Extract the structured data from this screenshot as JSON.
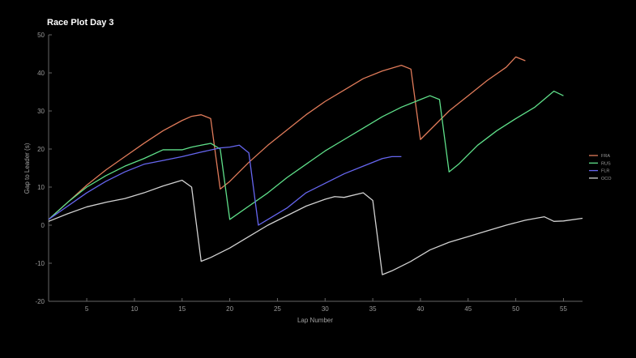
{
  "chart_data": {
    "type": "line",
    "title": "Race Plot Day 3",
    "xlabel": "Lap Number",
    "ylabel": "Gap to Leader (s)",
    "xlim": [
      1,
      57
    ],
    "ylim": [
      -20,
      50
    ],
    "xticks": [
      5,
      10,
      15,
      20,
      25,
      30,
      35,
      40,
      45,
      50,
      55
    ],
    "yticks": [
      -20,
      -10,
      0,
      10,
      20,
      30,
      40,
      50
    ],
    "grid": false,
    "legend_position": "right",
    "series": [
      {
        "name": "FRA",
        "color": "#e07b5a",
        "points": [
          [
            1,
            1.5
          ],
          [
            3,
            6
          ],
          [
            5,
            10.5
          ],
          [
            7,
            14.5
          ],
          [
            9,
            18
          ],
          [
            11,
            21.5
          ],
          [
            13,
            24.8
          ],
          [
            15,
            27.5
          ],
          [
            16,
            28.6
          ],
          [
            17,
            29
          ],
          [
            18,
            28
          ],
          [
            19,
            9.5
          ],
          [
            20,
            11.5
          ],
          [
            22,
            16.5
          ],
          [
            24,
            21
          ],
          [
            26,
            25
          ],
          [
            28,
            29
          ],
          [
            30,
            32.5
          ],
          [
            32,
            35.5
          ],
          [
            34,
            38.5
          ],
          [
            36,
            40.5
          ],
          [
            38,
            42
          ],
          [
            39,
            41
          ],
          [
            40,
            22.5
          ],
          [
            41,
            25
          ],
          [
            43,
            30
          ],
          [
            45,
            34
          ],
          [
            47,
            38
          ],
          [
            49,
            41.5
          ],
          [
            50,
            44.2
          ],
          [
            51,
            43.2
          ]
        ]
      },
      {
        "name": "RUS",
        "color": "#5fe08a",
        "points": [
          [
            1,
            1.5
          ],
          [
            3,
            6
          ],
          [
            5,
            10
          ],
          [
            7,
            13
          ],
          [
            9,
            15.5
          ],
          [
            11,
            17.5
          ],
          [
            13,
            19.8
          ],
          [
            15,
            19.8
          ],
          [
            16,
            20.5
          ],
          [
            17,
            21
          ],
          [
            18,
            21.5
          ],
          [
            19,
            20
          ],
          [
            20,
            1.5
          ],
          [
            22,
            5
          ],
          [
            24,
            8.5
          ],
          [
            26,
            12.5
          ],
          [
            28,
            16
          ],
          [
            30,
            19.5
          ],
          [
            32,
            22.5
          ],
          [
            34,
            25.5
          ],
          [
            36,
            28.5
          ],
          [
            38,
            31
          ],
          [
            40,
            33
          ],
          [
            41,
            34
          ],
          [
            42,
            33
          ],
          [
            43,
            14
          ],
          [
            44,
            16
          ],
          [
            46,
            21
          ],
          [
            48,
            24.8
          ],
          [
            50,
            28
          ],
          [
            52,
            31
          ],
          [
            54,
            35.2
          ],
          [
            55,
            34
          ]
        ]
      },
      {
        "name": "FLR",
        "color": "#6666f0",
        "points": [
          [
            1,
            1.5
          ],
          [
            3,
            5
          ],
          [
            5,
            8.5
          ],
          [
            7,
            11.5
          ],
          [
            9,
            14
          ],
          [
            11,
            16
          ],
          [
            13,
            17
          ],
          [
            15,
            18
          ],
          [
            17,
            19.2
          ],
          [
            19,
            20.3
          ],
          [
            20,
            20.5
          ],
          [
            21,
            21
          ],
          [
            22,
            19
          ],
          [
            23,
            0
          ],
          [
            24,
            1.5
          ],
          [
            26,
            4.5
          ],
          [
            28,
            8.5
          ],
          [
            30,
            11
          ],
          [
            32,
            13.5
          ],
          [
            34,
            15.5
          ],
          [
            36,
            17.5
          ],
          [
            37,
            18
          ],
          [
            38,
            18
          ]
        ]
      },
      {
        "name": "OCO",
        "color": "#d2d2d2",
        "points": [
          [
            1,
            1
          ],
          [
            3,
            3
          ],
          [
            5,
            4.8
          ],
          [
            7,
            6
          ],
          [
            9,
            7
          ],
          [
            11,
            8.5
          ],
          [
            13,
            10.3
          ],
          [
            15,
            11.8
          ],
          [
            16,
            10
          ],
          [
            17,
            -9.5
          ],
          [
            18,
            -8.5
          ],
          [
            20,
            -6
          ],
          [
            22,
            -3
          ],
          [
            24,
            0
          ],
          [
            26,
            2.5
          ],
          [
            28,
            5
          ],
          [
            30,
            6.8
          ],
          [
            31,
            7.5
          ],
          [
            32,
            7.3
          ],
          [
            34,
            8.5
          ],
          [
            35,
            6.5
          ],
          [
            36,
            -13
          ],
          [
            37,
            -12
          ],
          [
            39,
            -9.5
          ],
          [
            41,
            -6.5
          ],
          [
            43,
            -4.5
          ],
          [
            45,
            -3
          ],
          [
            47,
            -1.5
          ],
          [
            49,
            0
          ],
          [
            51,
            1.3
          ],
          [
            53,
            2.2
          ],
          [
            54,
            1
          ],
          [
            55,
            1.1
          ],
          [
            57,
            1.8
          ]
        ]
      }
    ]
  }
}
